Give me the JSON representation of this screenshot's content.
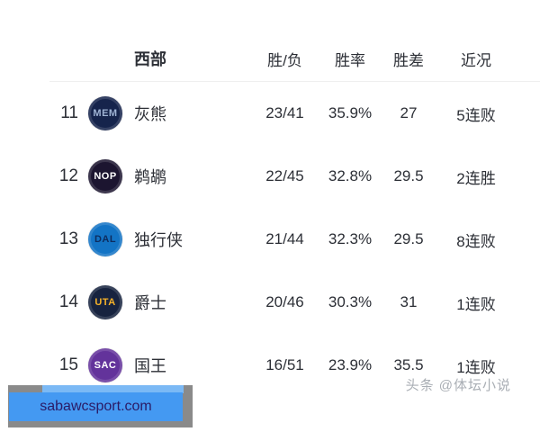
{
  "header": {
    "conference": "西部",
    "columns": [
      "胜/负",
      "胜率",
      "胜差",
      "近况"
    ]
  },
  "rows": [
    {
      "rank": "11",
      "abbr": "MEM",
      "team": "灰熊",
      "wl": "23/41",
      "pct": "35.9%",
      "gb": "27",
      "streak": "5连败",
      "logo_bg": "#16244c",
      "logo_fg": "#9fb3d4"
    },
    {
      "rank": "12",
      "abbr": "NOP",
      "team": "鹈鹕",
      "wl": "22/45",
      "pct": "32.8%",
      "gb": "29.5",
      "streak": "2连胜",
      "logo_bg": "#1c1530",
      "logo_fg": "#ffffff"
    },
    {
      "rank": "13",
      "abbr": "DAL",
      "team": "独行侠",
      "wl": "21/44",
      "pct": "32.3%",
      "gb": "29.5",
      "streak": "8连败",
      "logo_bg": "#1374c5",
      "logo_fg": "#0d2c5e"
    },
    {
      "rank": "14",
      "abbr": "UTA",
      "team": "爵士",
      "wl": "20/46",
      "pct": "30.3%",
      "gb": "31",
      "streak": "1连败",
      "logo_bg": "#17233f",
      "logo_fg": "#f5b22a"
    },
    {
      "rank": "15",
      "abbr": "SAC",
      "team": "国王",
      "wl": "16/51",
      "pct": "23.9%",
      "gb": "35.5",
      "streak": "1连败",
      "logo_bg": "#63339b",
      "logo_fg": "#ffffff"
    }
  ],
  "watermarks": {
    "site_url": "sabawcsport.com",
    "credit": "头条 @体坛小说",
    "box_color": "#4499f2",
    "box_light_color": "#7bb9f5",
    "box_backdrop_color": "#8a8a8a",
    "site_text_color": "#2b1b66",
    "credit_color": "#a9aeb4"
  }
}
